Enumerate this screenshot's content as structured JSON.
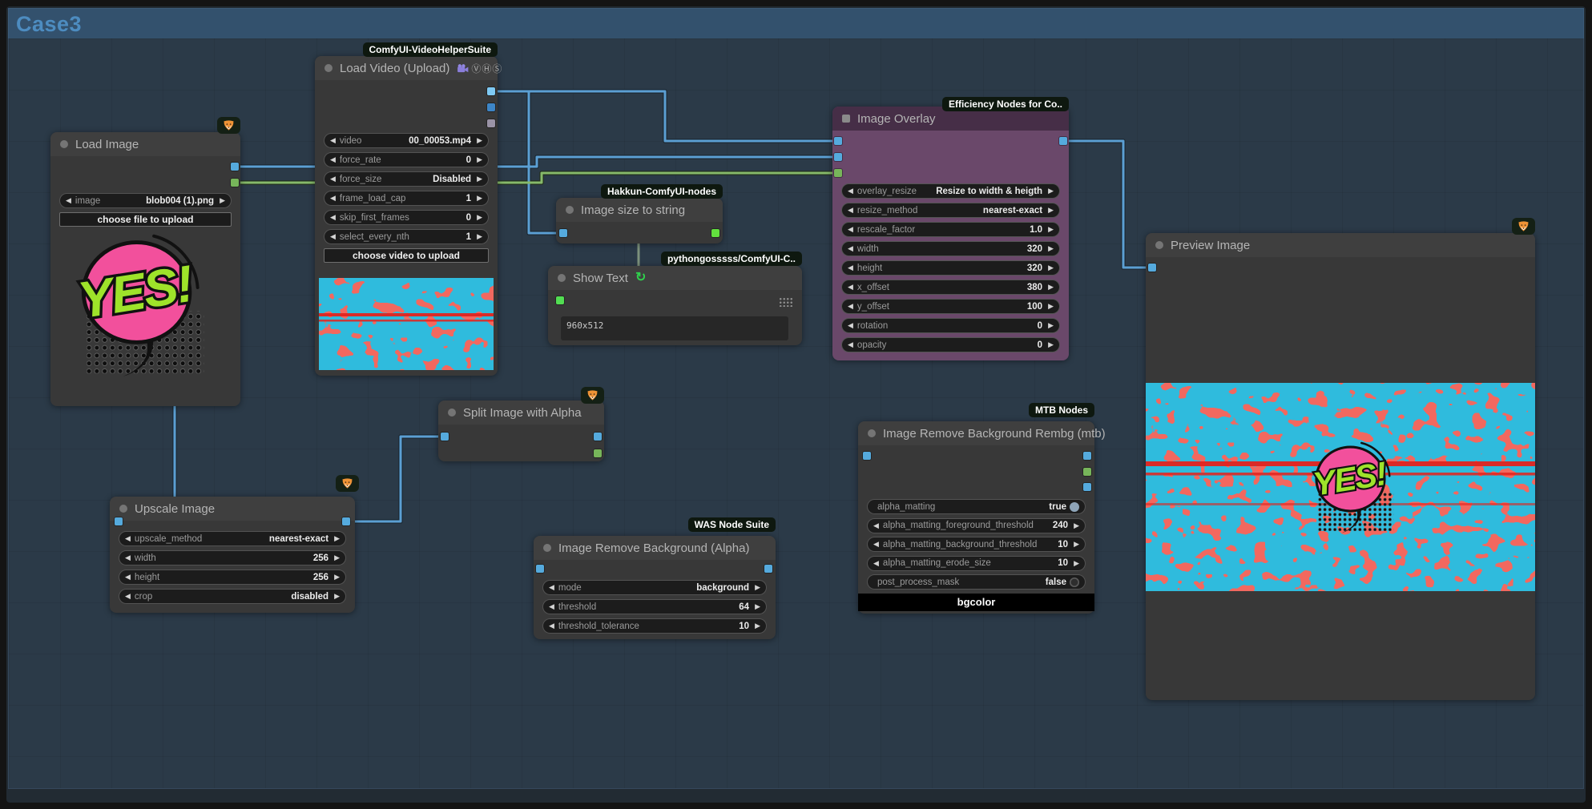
{
  "app": {
    "group_title": "Case3"
  },
  "badges": {
    "load_video": "ComfyUI-VideoHelperSuite",
    "image_overlay": "Efficiency Nodes for Co..",
    "image_size": "Hakkun-ComfyUI-nodes",
    "show_text": "pythongosssss/ComfyUI-C..",
    "was": "WAS Node Suite",
    "mtb": "MTB Nodes",
    "fox_icon": "fox-icon"
  },
  "nodes": {
    "load_image": {
      "title": "Load Image",
      "widgets": [
        {
          "type": "combo",
          "label": "image",
          "value": "blob004 (1).png"
        },
        {
          "type": "button",
          "label": "choose file to upload"
        }
      ]
    },
    "load_video": {
      "title": "Load Video (Upload)",
      "title_icons": "ⓋⒽⓈ",
      "widgets": [
        {
          "type": "combo",
          "label": "video",
          "value": "00_00053.mp4"
        },
        {
          "type": "number",
          "label": "force_rate",
          "value": "0"
        },
        {
          "type": "combo",
          "label": "force_size",
          "value": "Disabled"
        },
        {
          "type": "number",
          "label": "frame_load_cap",
          "value": "1"
        },
        {
          "type": "number",
          "label": "skip_first_frames",
          "value": "0"
        },
        {
          "type": "number",
          "label": "select_every_nth",
          "value": "1"
        },
        {
          "type": "button",
          "label": "choose video to upload"
        }
      ]
    },
    "image_size": {
      "title": "Image size to string"
    },
    "show_text": {
      "title": "Show Text",
      "value": "960x512"
    },
    "image_overlay": {
      "title": "Image Overlay",
      "widgets": [
        {
          "type": "combo",
          "label": "overlay_resize",
          "value": "Resize to width & heigth"
        },
        {
          "type": "combo",
          "label": "resize_method",
          "value": "nearest-exact"
        },
        {
          "type": "number",
          "label": "rescale_factor",
          "value": "1.0"
        },
        {
          "type": "number",
          "label": "width",
          "value": "320"
        },
        {
          "type": "number",
          "label": "height",
          "value": "320"
        },
        {
          "type": "number",
          "label": "x_offset",
          "value": "380"
        },
        {
          "type": "number",
          "label": "y_offset",
          "value": "100"
        },
        {
          "type": "number",
          "label": "rotation",
          "value": "0"
        },
        {
          "type": "number",
          "label": "opacity",
          "value": "0"
        }
      ]
    },
    "preview_image": {
      "title": "Preview Image"
    },
    "upscale_image": {
      "title": "Upscale Image",
      "widgets": [
        {
          "type": "combo",
          "label": "upscale_method",
          "value": "nearest-exact"
        },
        {
          "type": "number",
          "label": "width",
          "value": "256"
        },
        {
          "type": "number",
          "label": "height",
          "value": "256"
        },
        {
          "type": "combo",
          "label": "crop",
          "value": "disabled"
        }
      ]
    },
    "split_image": {
      "title": "Split Image with Alpha"
    },
    "was_remove_bg": {
      "title": "Image Remove Background (Alpha)",
      "widgets": [
        {
          "type": "combo",
          "label": "mode",
          "value": "background"
        },
        {
          "type": "number",
          "label": "threshold",
          "value": "64"
        },
        {
          "type": "number",
          "label": "threshold_tolerance",
          "value": "10"
        }
      ]
    },
    "mtb_remove_bg": {
      "title": "Image Remove Background Rembg (mtb)",
      "widgets": [
        {
          "type": "toggle",
          "label": "alpha_matting",
          "value": "true"
        },
        {
          "type": "number",
          "label": "alpha_matting_foreground_threshold",
          "value": "240"
        },
        {
          "type": "number",
          "label": "alpha_matting_background_threshold",
          "value": "10"
        },
        {
          "type": "number",
          "label": "alpha_matting_erode_size",
          "value": "10"
        },
        {
          "type": "toggle",
          "label": "post_process_mask",
          "value": "false"
        },
        {
          "type": "color",
          "label": "bgcolor"
        }
      ]
    }
  },
  "colors": {
    "group_header": "#33516d",
    "group_title_text": "#4d8cc0",
    "canvas": "#2b3a48",
    "node_body": "#383838",
    "node_title": "#3f3f3f",
    "node_purple": "#6a486a",
    "node_purple_title": "#462e47",
    "wire_blue": "#5b9fd3",
    "wire_green": "#86b96a",
    "wire_string": "#7c917c",
    "port_image": "#55aadd",
    "port_mask": "#77b55a",
    "port_string": "#52dd52",
    "port_vhs_audio": "#9a93a6",
    "badge_bg": "#0e180f",
    "pattern_red": "#e3231d",
    "pattern_cyan": "#2fbbdd",
    "bubble_pink": "#f2509c",
    "bubble_green": "#9ee32a"
  }
}
